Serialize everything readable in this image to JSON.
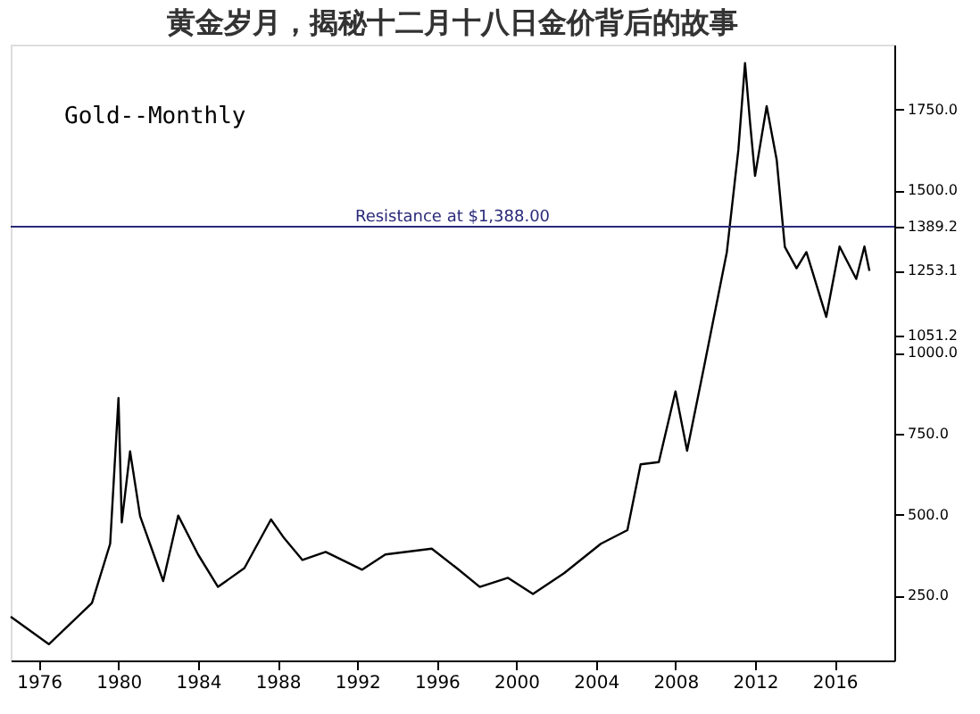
{
  "chart_data": {
    "type": "line",
    "title": "黄金岁月，揭秘十二月十八日金价背后的故事",
    "x": [
      "1974-08",
      "1976-07",
      "1978-09",
      "1979-08",
      "1980-01",
      "1980-03",
      "1980-08",
      "1981-02",
      "1982-04",
      "1983-01",
      "1984-01",
      "1985-01",
      "1986-05",
      "1987-09",
      "1988-05",
      "1989-04",
      "1990-06",
      "1992-04",
      "1993-06",
      "1995-10",
      "1997-01",
      "1998-03",
      "1999-08",
      "2000-11",
      "2002-06",
      "2004-04",
      "2005-08",
      "2006-04",
      "2007-03",
      "2008-01",
      "2008-08",
      "2009-06",
      "2010-08",
      "2011-03",
      "2011-07",
      "2011-10",
      "2012-01",
      "2012-08",
      "2013-02",
      "2013-07",
      "2014-02",
      "2014-08",
      "2015-08",
      "2016-04",
      "2017-02",
      "2017-07",
      "2017-10"
    ],
    "series": [
      {
        "color": "#000000",
        "values": [
          185,
          100,
          227,
          410,
          860,
          476,
          695,
          495,
          295,
          497,
          377,
          277,
          335,
          485,
          427,
          360,
          385,
          330,
          377,
          395,
          335,
          277,
          305,
          255,
          320,
          410,
          452,
          655,
          662,
          880,
          697,
          950,
          1310,
          1626,
          1893,
          1710,
          1545,
          1760,
          1595,
          1326,
          1260,
          1310,
          1110,
          1327,
          1227,
          1327,
          1252
        ]
      }
    ],
    "xlim": [
      "1974-08",
      "2019-01"
    ],
    "xticks": [
      "1976",
      "1980",
      "1984",
      "1988",
      "1992",
      "1996",
      "2000",
      "2004",
      "2008",
      "2012",
      "2016"
    ],
    "ylim": [
      50,
      1950
    ],
    "yticks": [
      {
        "value": 250,
        "label": "250.0"
      },
      {
        "value": 500,
        "label": "500.0"
      },
      {
        "value": 750,
        "label": "750.0"
      },
      {
        "value": 1000,
        "label": "1000.0"
      },
      {
        "value": 1051.2,
        "label": "1051.2"
      },
      {
        "value": 1253.1,
        "label": "1253.1"
      },
      {
        "value": 1389.2,
        "label": "1389.2"
      },
      {
        "value": 1500,
        "label": "1500.0"
      },
      {
        "value": 1750,
        "label": "1750.0"
      }
    ],
    "ref_lines": [
      {
        "axis": "y",
        "value": 1388,
        "label": "Resistance at $1,388.00",
        "color": "#2a2a7a"
      }
    ],
    "annotations": [
      "Gold--Monthly"
    ],
    "grid": false,
    "marker": "none",
    "line_style": "solid"
  }
}
